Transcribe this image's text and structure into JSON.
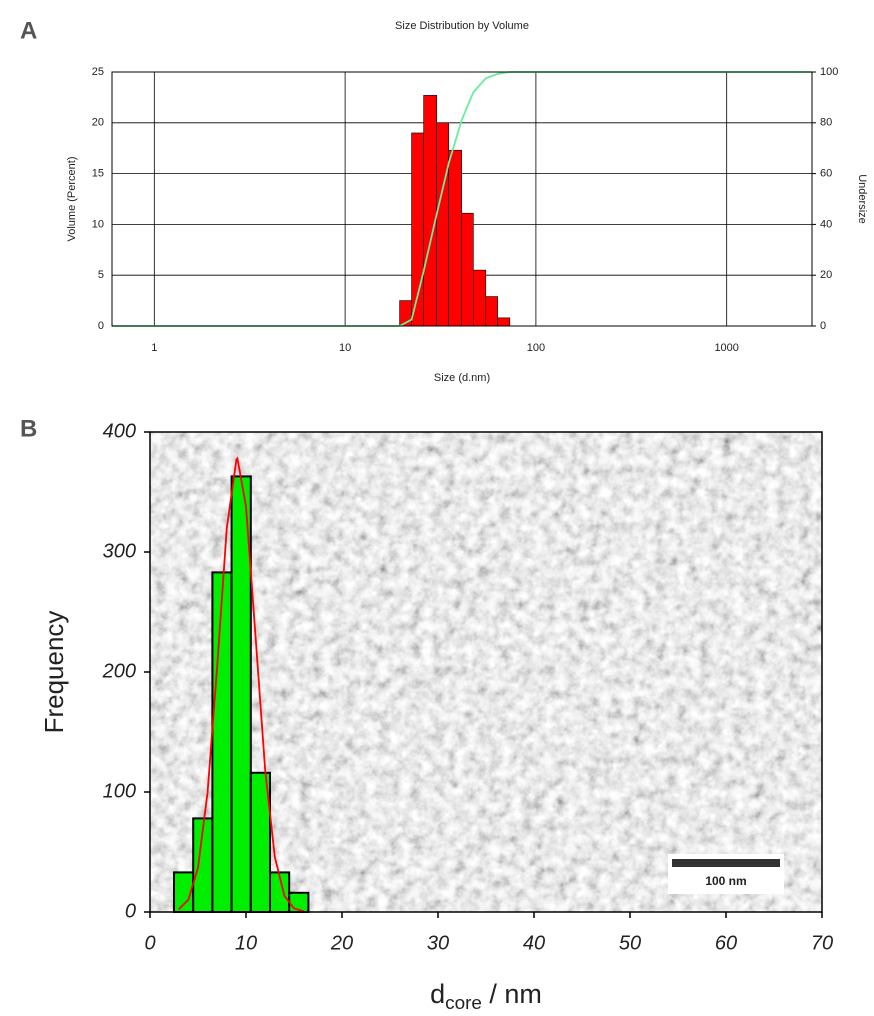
{
  "chart_data": [
    {
      "type": "histogram",
      "panel": "A",
      "title": "Size Distribution by Volume",
      "xlabel": "Size (d.nm)",
      "ylabel": "Volume (Percent)",
      "y2label": "Undersize",
      "xscale": "log",
      "xlim": [
        0.6,
        2800
      ],
      "xticks": [
        1,
        10,
        100,
        1000
      ],
      "ylim": [
        0,
        25
      ],
      "yticks": [
        0,
        5,
        10,
        15,
        20,
        25
      ],
      "y2lim": [
        0,
        100
      ],
      "y2ticks": [
        0,
        20,
        40,
        60,
        80,
        100
      ],
      "grid": true,
      "bins": [
        19.3,
        22.3,
        25.8,
        30.2,
        34.9,
        40.8,
        47.0,
        54.6,
        63.0,
        73.0
      ],
      "values": [
        2.5,
        19,
        22.7,
        20,
        17.3,
        11.1,
        5.5,
        2.9,
        0.8
      ],
      "color": "#ff0000",
      "edgecolor": "#000000",
      "lines": [
        {
          "x": [
            0.6,
            19.3,
            22.3,
            25.8,
            30.2,
            34.9,
            40.8,
            47.0,
            54.6,
            63.0,
            73.0,
            2800
          ],
          "values": [
            0,
            0,
            2.5,
            21.5,
            44,
            64,
            81,
            92,
            97.5,
            99.3,
            100,
            100
          ],
          "color": "#66ee99",
          "axis": "y2"
        }
      ]
    },
    {
      "type": "histogram",
      "panel": "B",
      "xlabel": "d",
      "xlabel_sub": "core",
      "xlabel_suffix": " / nm",
      "ylabel": "Frequency",
      "xlim": [
        0,
        70
      ],
      "xticks": [
        0,
        10,
        20,
        30,
        40,
        50,
        60,
        70
      ],
      "ylim": [
        0,
        400
      ],
      "yticks": [
        0,
        100,
        200,
        300,
        400
      ],
      "grid": false,
      "bins": [
        2.5,
        4.5,
        6.5,
        8.5,
        10.5,
        12.5,
        14.5,
        16.5
      ],
      "values": [
        33,
        78,
        283,
        363,
        116,
        33,
        16
      ],
      "color": "#00ee00",
      "edgecolor": "#000000",
      "lines": [
        {
          "x": [
            3,
            4,
            5,
            6,
            7,
            8,
            9,
            9.1,
            10,
            11,
            12,
            13,
            14,
            15,
            16
          ],
          "values": [
            2.2,
            10.3,
            36.9,
            99.9,
            205,
            320,
            377,
            378,
            338,
            229,
            118,
            46,
            13.6,
            3.0,
            0.5
          ],
          "color": "#ff0000"
        }
      ],
      "background": "micrograph",
      "scale_bar_label": "100 nm"
    }
  ]
}
